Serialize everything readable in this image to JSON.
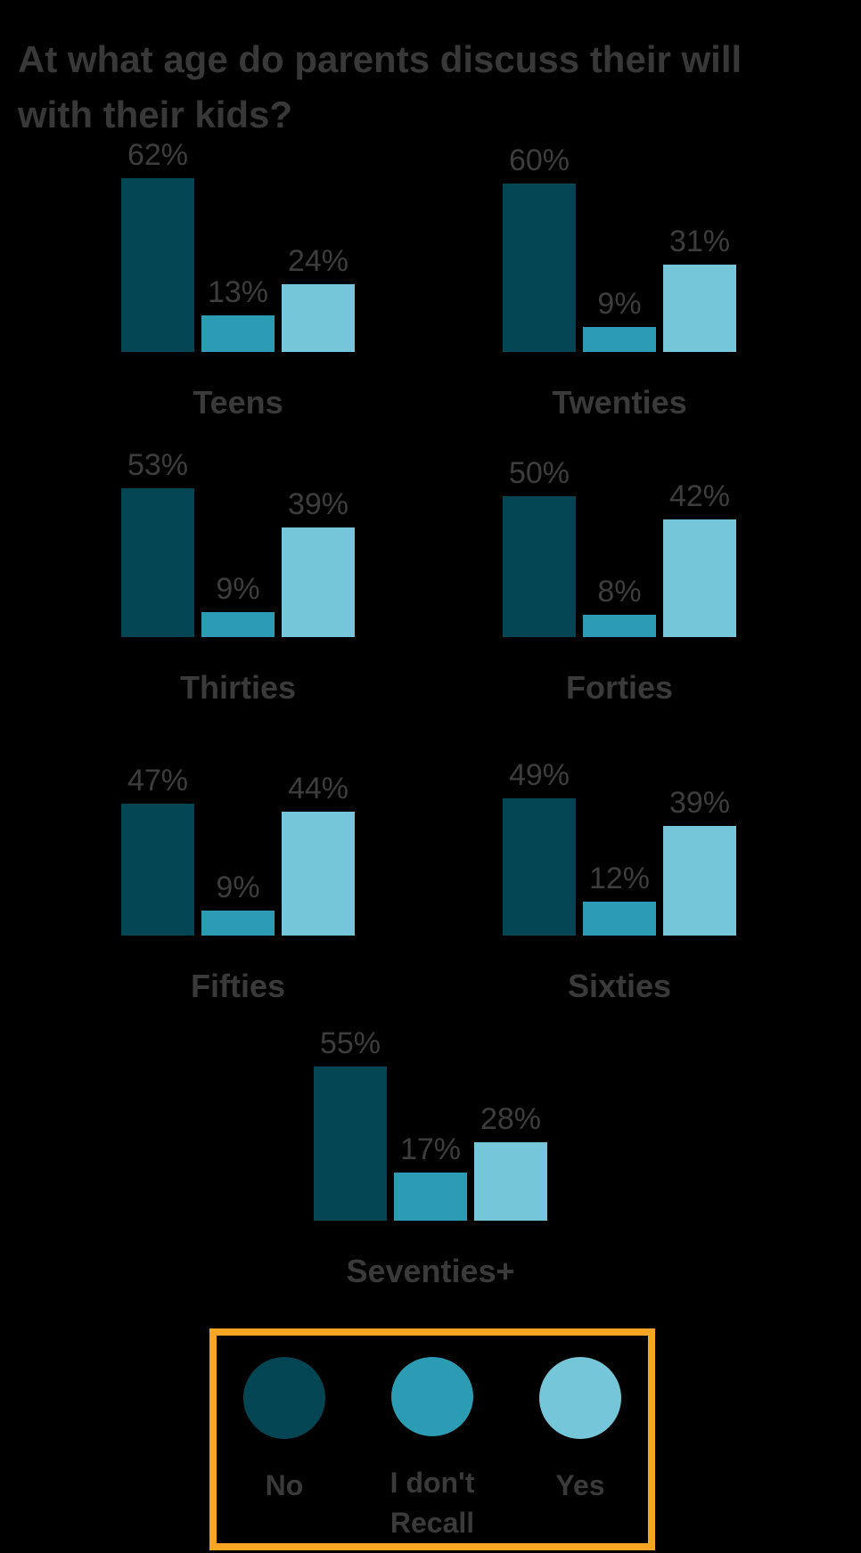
{
  "page": {
    "background_color": "#000000",
    "text_color": "#3a3a3a"
  },
  "chart_data": {
    "type": "bar",
    "title": "At what age do parents discuss their will with their kids?",
    "title_lines": [
      "At what age do parents discuss their will",
      "with their kids?"
    ],
    "value_suffix": "%",
    "ylim": [
      0,
      100
    ],
    "grid": false,
    "legend_position": "bottom",
    "legend_border_color": "#F6A623",
    "series": [
      {
        "name": "No",
        "color": "#044554"
      },
      {
        "name": "I don't Recall",
        "color": "#2C9BB4"
      },
      {
        "name": "Yes",
        "color": "#74C6D8"
      }
    ],
    "categories": [
      "Teens",
      "Twenties",
      "Thirties",
      "Forties",
      "Fifties",
      "Sixties",
      "Seventies+"
    ],
    "groups": [
      {
        "label": "Teens",
        "values": [
          62,
          13,
          24
        ]
      },
      {
        "label": "Twenties",
        "values": [
          60,
          9,
          31
        ]
      },
      {
        "label": "Thirties",
        "values": [
          53,
          9,
          39
        ]
      },
      {
        "label": "Forties",
        "values": [
          50,
          8,
          42
        ]
      },
      {
        "label": "Fifties",
        "values": [
          47,
          9,
          44
        ]
      },
      {
        "label": "Sixties",
        "values": [
          49,
          12,
          39
        ]
      },
      {
        "label": "Seventies+",
        "values": [
          55,
          17,
          28
        ]
      }
    ]
  }
}
